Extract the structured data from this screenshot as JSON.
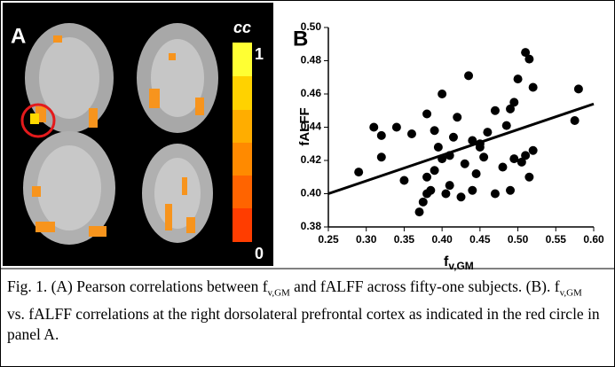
{
  "panel_a": {
    "label": "A",
    "colorbar_label": "cc",
    "colorbar_max": "1",
    "colorbar_min": "0"
  },
  "chart_data": {
    "type": "scatter",
    "panel_label": "B",
    "y_label": "fALFF",
    "x_label": "f",
    "x_label_subscript": "v,GM",
    "color": "#000000",
    "x": [
      0.29,
      0.31,
      0.32,
      0.32,
      0.34,
      0.35,
      0.36,
      0.37,
      0.375,
      0.38,
      0.38,
      0.38,
      0.385,
      0.39,
      0.39,
      0.395,
      0.4,
      0.4,
      0.405,
      0.41,
      0.41,
      0.415,
      0.42,
      0.425,
      0.43,
      0.435,
      0.44,
      0.44,
      0.445,
      0.45,
      0.45,
      0.455,
      0.46,
      0.47,
      0.47,
      0.48,
      0.485,
      0.49,
      0.49,
      0.495,
      0.495,
      0.5,
      0.505,
      0.51,
      0.51,
      0.515,
      0.515,
      0.52,
      0.52,
      0.58,
      0.575
    ],
    "values": [
      0.413,
      0.44,
      0.435,
      0.422,
      0.44,
      0.408,
      0.436,
      0.389,
      0.395,
      0.4,
      0.41,
      0.448,
      0.402,
      0.414,
      0.438,
      0.428,
      0.421,
      0.46,
      0.4,
      0.405,
      0.423,
      0.434,
      0.446,
      0.398,
      0.418,
      0.471,
      0.432,
      0.402,
      0.412,
      0.43,
      0.428,
      0.422,
      0.437,
      0.4,
      0.45,
      0.416,
      0.441,
      0.402,
      0.451,
      0.455,
      0.421,
      0.469,
      0.419,
      0.485,
      0.423,
      0.481,
      0.41,
      0.464,
      0.426,
      0.463,
      0.444
    ],
    "trend_line": {
      "x": [
        0.25,
        0.6
      ],
      "y": [
        0.4,
        0.454
      ]
    },
    "xlim": [
      0.25,
      0.6
    ],
    "ylim": [
      0.38,
      0.5
    ],
    "xticks": [
      {
        "value": 0.25,
        "label": "0.25"
      },
      {
        "value": 0.3,
        "label": "0.30"
      },
      {
        "value": 0.35,
        "label": "0.35"
      },
      {
        "value": 0.4,
        "label": "0.40"
      },
      {
        "value": 0.45,
        "label": "0.45"
      },
      {
        "value": 0.5,
        "label": "0.50"
      },
      {
        "value": 0.55,
        "label": "0.55"
      },
      {
        "value": 0.6,
        "label": "0.60"
      }
    ],
    "yticks": [
      {
        "value": 0.38,
        "label": "0.38"
      },
      {
        "value": 0.4,
        "label": "0.40"
      },
      {
        "value": 0.42,
        "label": "0.42"
      },
      {
        "value": 0.44,
        "label": "0.44"
      },
      {
        "value": 0.46,
        "label": "0.46"
      },
      {
        "value": 0.48,
        "label": "0.48"
      },
      {
        "value": 0.5,
        "label": "0.50"
      }
    ]
  },
  "caption": [
    "Fig. 1. (A) Pearson correlations between f",
    "v,GM",
    " and fALFF across fifty-one subjects. (B). f",
    "v,GM",
    " vs. fALFF correlations at the right dorsolateral prefrontal cortex as indicated in the red circle in panel A."
  ]
}
